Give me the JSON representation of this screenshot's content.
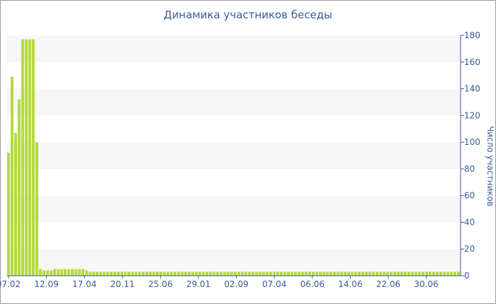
{
  "chart_data": {
    "type": "bar",
    "title": "Динамика участников беседы",
    "ylabel": "Число участников",
    "xlabel": "",
    "ylim": [
      0,
      180
    ],
    "y_ticks": [
      0,
      20,
      40,
      60,
      80,
      100,
      120,
      140,
      160,
      180
    ],
    "y_axis_side": "right",
    "grid": "alternating horizontal bands",
    "x_tick_labels": [
      "07.02",
      "12.09",
      "17.04",
      "20.11",
      "25.06",
      "29.01",
      "02.09",
      "07.04",
      "06.06",
      "14.06",
      "22.06",
      "30.06"
    ],
    "bar_color": "#b4dc3c",
    "band_color": "#f6f6f6",
    "values": [
      92,
      149,
      107,
      132,
      177,
      177,
      177,
      177,
      100,
      5,
      4,
      4,
      4,
      5,
      5,
      5,
      5,
      5,
      5,
      5,
      5,
      5,
      4,
      3,
      3,
      3,
      3,
      3,
      3,
      3,
      3,
      3,
      3,
      3,
      3,
      3,
      3,
      3,
      3,
      3,
      3,
      3,
      3,
      3,
      3,
      3,
      3,
      3,
      3,
      3,
      3,
      3,
      3,
      3,
      3,
      3,
      3,
      3,
      3,
      3,
      3,
      3,
      3,
      3,
      3,
      3,
      3,
      3,
      3,
      3,
      3,
      3,
      3,
      3,
      3,
      3,
      3,
      3,
      3,
      3,
      3,
      3,
      3,
      3,
      3,
      3,
      3,
      3,
      3,
      3,
      3,
      3,
      3,
      3,
      3,
      3,
      3,
      3,
      3,
      3,
      3,
      3,
      3,
      3,
      3,
      3,
      3,
      3,
      3,
      3,
      3,
      3,
      3,
      3,
      3,
      3,
      3,
      3,
      3,
      3,
      3,
      3,
      3,
      3,
      3,
      3,
      3,
      3
    ]
  }
}
